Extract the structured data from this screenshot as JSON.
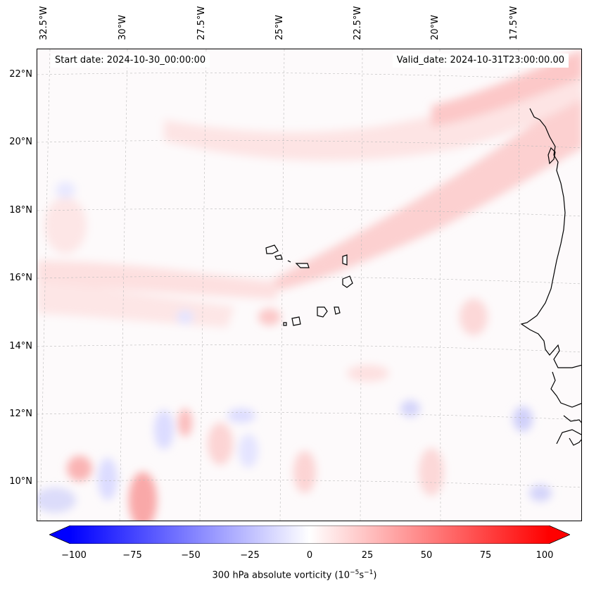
{
  "map": {
    "lon_labels": [
      "32.5°W",
      "30°W",
      "27.5°W",
      "25°W",
      "22.5°W",
      "20°W",
      "17.5°W"
    ],
    "lat_labels": [
      "22°N",
      "20°N",
      "18°N",
      "16°N",
      "14°N",
      "12°N",
      "10°N"
    ],
    "start_date": "Start date: 2024-10-30_00:00:00",
    "valid_date": "Valid_date: 2024-10-31T23:00:00.00",
    "field": "300 hPa absolute vorticity",
    "colors": {
      "negative": "#0000ff",
      "neutral": "#ffffff",
      "positive": "#ff0000",
      "coast": "#000000"
    }
  },
  "colorbar": {
    "ticks": [
      "−100",
      "−75",
      "−50",
      "−25",
      "0",
      "25",
      "50",
      "75",
      "100"
    ],
    "title_prefix": "300 hPa absolute vorticity (10",
    "title_exp1": "−5",
    "title_mid": "s",
    "title_exp2": "−1",
    "title_suffix": ")"
  }
}
